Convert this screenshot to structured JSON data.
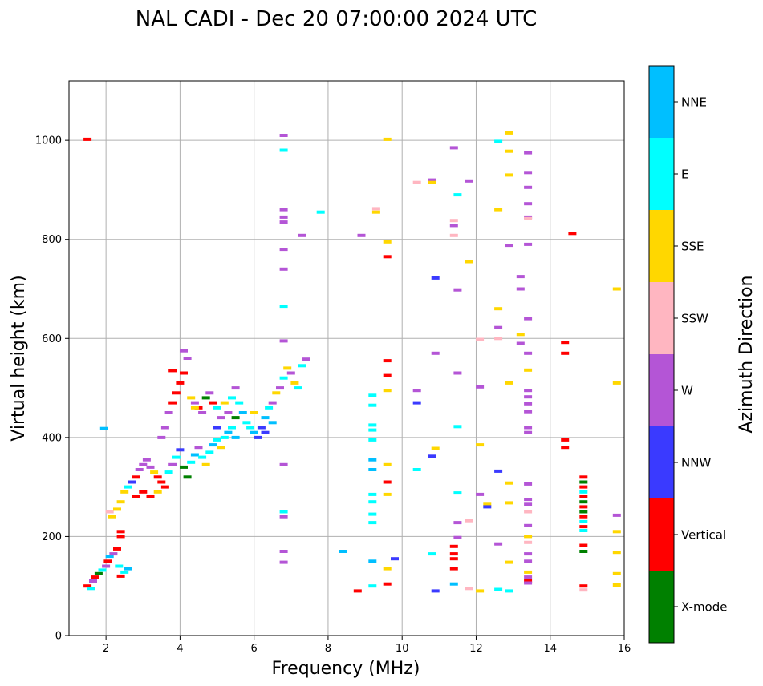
{
  "chart_data": {
    "type": "scatter",
    "title": "NAL CADI - Dec 20 07:00:00 2024 UTC",
    "xlabel": "Frequency (MHz)",
    "ylabel": "Virtual height (km)",
    "xlim": [
      1,
      16
    ],
    "ylim": [
      0,
      1120
    ],
    "xticks": [
      2,
      4,
      6,
      8,
      10,
      12,
      14,
      16
    ],
    "yticks": [
      0,
      200,
      400,
      600,
      800,
      1000
    ],
    "grid": true,
    "colorbar": {
      "label": "Azimuth Direction",
      "categories": [
        {
          "name": "X-mode",
          "color": "#008000"
        },
        {
          "name": "Vertical",
          "color": "#ff0000"
        },
        {
          "name": "NNW",
          "color": "#3a3aff"
        },
        {
          "name": "W",
          "color": "#b455d6"
        },
        {
          "name": "SSW",
          "color": "#ffb6c1"
        },
        {
          "name": "SSE",
          "color": "#ffd700"
        },
        {
          "name": "E",
          "color": "#00ffff"
        },
        {
          "name": "NNE",
          "color": "#00bfff"
        }
      ]
    },
    "points": [
      [
        1.5,
        1002,
        1
      ],
      [
        1.5,
        100,
        1
      ],
      [
        1.6,
        95,
        6
      ],
      [
        1.65,
        110,
        3
      ],
      [
        1.7,
        118,
        1
      ],
      [
        1.8,
        125,
        0
      ],
      [
        1.9,
        132,
        6
      ],
      [
        2.0,
        140,
        3
      ],
      [
        2.05,
        150,
        1
      ],
      [
        2.1,
        160,
        7
      ],
      [
        2.2,
        165,
        3
      ],
      [
        2.3,
        175,
        1
      ],
      [
        2.4,
        200,
        1
      ],
      [
        2.4,
        210,
        1
      ],
      [
        2.35,
        140,
        6
      ],
      [
        2.5,
        128,
        6
      ],
      [
        2.6,
        135,
        7
      ],
      [
        2.4,
        120,
        1
      ],
      [
        1.95,
        418,
        7
      ],
      [
        2.1,
        250,
        4
      ],
      [
        2.15,
        240,
        5
      ],
      [
        2.3,
        255,
        5
      ],
      [
        2.4,
        270,
        5
      ],
      [
        2.5,
        290,
        5
      ],
      [
        2.6,
        300,
        6
      ],
      [
        2.7,
        310,
        2
      ],
      [
        2.8,
        320,
        1
      ],
      [
        2.9,
        335,
        3
      ],
      [
        3.0,
        345,
        3
      ],
      [
        3.1,
        355,
        3
      ],
      [
        3.2,
        340,
        3
      ],
      [
        3.3,
        330,
        5
      ],
      [
        3.4,
        320,
        1
      ],
      [
        3.5,
        310,
        1
      ],
      [
        3.6,
        300,
        1
      ],
      [
        3.0,
        290,
        1
      ],
      [
        3.2,
        280,
        1
      ],
      [
        2.8,
        280,
        1
      ],
      [
        3.4,
        290,
        5
      ],
      [
        3.7,
        330,
        6
      ],
      [
        3.8,
        345,
        3
      ],
      [
        3.9,
        360,
        6
      ],
      [
        4.0,
        375,
        2
      ],
      [
        4.1,
        340,
        0
      ],
      [
        4.2,
        320,
        0
      ],
      [
        4.3,
        350,
        6
      ],
      [
        4.4,
        365,
        7
      ],
      [
        4.5,
        380,
        3
      ],
      [
        4.6,
        360,
        6
      ],
      [
        4.7,
        345,
        5
      ],
      [
        4.8,
        370,
        6
      ],
      [
        4.9,
        385,
        7
      ],
      [
        5.0,
        395,
        6
      ],
      [
        5.1,
        380,
        5
      ],
      [
        5.2,
        400,
        6
      ],
      [
        5.3,
        410,
        7
      ],
      [
        5.4,
        420,
        6
      ],
      [
        5.5,
        400,
        7
      ],
      [
        3.5,
        400,
        3
      ],
      [
        3.6,
        420,
        3
      ],
      [
        3.7,
        450,
        3
      ],
      [
        3.8,
        470,
        1
      ],
      [
        3.9,
        490,
        1
      ],
      [
        4.0,
        510,
        1
      ],
      [
        4.1,
        530,
        1
      ],
      [
        4.2,
        560,
        3
      ],
      [
        4.3,
        480,
        5
      ],
      [
        4.4,
        470,
        3
      ],
      [
        4.5,
        460,
        1
      ],
      [
        4.6,
        450,
        3
      ],
      [
        4.7,
        480,
        0
      ],
      [
        4.8,
        490,
        3
      ],
      [
        4.9,
        470,
        1
      ],
      [
        5.0,
        460,
        6
      ],
      [
        5.1,
        440,
        3
      ],
      [
        5.2,
        470,
        5
      ],
      [
        5.3,
        450,
        3
      ],
      [
        5.4,
        480,
        6
      ],
      [
        5.5,
        500,
        3
      ],
      [
        5.6,
        470,
        6
      ],
      [
        5.7,
        450,
        7
      ],
      [
        5.8,
        430,
        6
      ],
      [
        5.9,
        420,
        6
      ],
      [
        6.0,
        410,
        7
      ],
      [
        6.1,
        400,
        2
      ],
      [
        6.2,
        420,
        2
      ],
      [
        6.3,
        440,
        7
      ],
      [
        6.4,
        460,
        6
      ],
      [
        6.5,
        470,
        3
      ],
      [
        6.6,
        490,
        5
      ],
      [
        6.7,
        500,
        3
      ],
      [
        6.8,
        520,
        6
      ],
      [
        6.9,
        540,
        5
      ],
      [
        7.0,
        530,
        3
      ],
      [
        7.1,
        510,
        5
      ],
      [
        7.2,
        500,
        6
      ],
      [
        7.3,
        545,
        6
      ],
      [
        7.4,
        558,
        3
      ],
      [
        4.1,
        575,
        3
      ],
      [
        3.8,
        535,
        1
      ],
      [
        4.4,
        460,
        5
      ],
      [
        5.0,
        420,
        2
      ],
      [
        5.5,
        440,
        0
      ],
      [
        6.0,
        450,
        5
      ],
      [
        6.5,
        430,
        7
      ],
      [
        6.3,
        410,
        2
      ],
      [
        6.8,
        1010,
        3
      ],
      [
        6.8,
        980,
        6
      ],
      [
        6.8,
        860,
        3
      ],
      [
        6.8,
        845,
        3
      ],
      [
        6.8,
        835,
        3
      ],
      [
        6.8,
        780,
        3
      ],
      [
        6.8,
        740,
        3
      ],
      [
        6.8,
        665,
        6
      ],
      [
        6.8,
        595,
        3
      ],
      [
        6.8,
        345,
        3
      ],
      [
        6.8,
        250,
        6
      ],
      [
        6.8,
        240,
        3
      ],
      [
        6.8,
        170,
        3
      ],
      [
        6.8,
        148,
        3
      ],
      [
        7.3,
        808,
        3
      ],
      [
        7.8,
        855,
        6
      ],
      [
        8.4,
        170,
        7
      ],
      [
        8.8,
        90,
        1
      ],
      [
        8.9,
        808,
        3
      ],
      [
        9.2,
        485,
        6
      ],
      [
        9.2,
        465,
        6
      ],
      [
        9.2,
        425,
        6
      ],
      [
        9.2,
        415,
        6
      ],
      [
        9.2,
        395,
        6
      ],
      [
        9.2,
        355,
        7
      ],
      [
        9.2,
        335,
        7
      ],
      [
        9.2,
        285,
        6
      ],
      [
        9.2,
        270,
        6
      ],
      [
        9.2,
        245,
        6
      ],
      [
        9.2,
        228,
        6
      ],
      [
        9.2,
        150,
        7
      ],
      [
        9.2,
        100,
        6
      ],
      [
        9.3,
        862,
        4
      ],
      [
        9.3,
        855,
        5
      ],
      [
        9.6,
        1002,
        5
      ],
      [
        9.6,
        795,
        5
      ],
      [
        9.6,
        765,
        1
      ],
      [
        9.6,
        555,
        1
      ],
      [
        9.6,
        525,
        1
      ],
      [
        9.6,
        495,
        5
      ],
      [
        9.6,
        345,
        5
      ],
      [
        9.6,
        310,
        1
      ],
      [
        9.6,
        285,
        5
      ],
      [
        9.6,
        135,
        5
      ],
      [
        9.6,
        104,
        1
      ],
      [
        9.8,
        155,
        2
      ],
      [
        10.4,
        915,
        4
      ],
      [
        10.4,
        495,
        3
      ],
      [
        10.4,
        470,
        2
      ],
      [
        10.4,
        335,
        6
      ],
      [
        10.8,
        920,
        3
      ],
      [
        10.8,
        915,
        5
      ],
      [
        10.8,
        362,
        2
      ],
      [
        10.8,
        165,
        6
      ],
      [
        10.9,
        722,
        2
      ],
      [
        10.9,
        570,
        3
      ],
      [
        10.9,
        378,
        5
      ],
      [
        10.9,
        90,
        2
      ],
      [
        11.4,
        985,
        3
      ],
      [
        11.4,
        838,
        4
      ],
      [
        11.4,
        828,
        3
      ],
      [
        11.4,
        808,
        4
      ],
      [
        11.4,
        180,
        1
      ],
      [
        11.4,
        165,
        1
      ],
      [
        11.4,
        155,
        1
      ],
      [
        11.4,
        135,
        1
      ],
      [
        11.4,
        104,
        7
      ],
      [
        11.5,
        890,
        6
      ],
      [
        11.5,
        698,
        3
      ],
      [
        11.5,
        530,
        3
      ],
      [
        11.5,
        422,
        6
      ],
      [
        11.5,
        288,
        6
      ],
      [
        11.5,
        228,
        3
      ],
      [
        11.5,
        198,
        3
      ],
      [
        11.8,
        918,
        3
      ],
      [
        11.8,
        755,
        5
      ],
      [
        11.8,
        232,
        4
      ],
      [
        11.8,
        95,
        4
      ],
      [
        12.1,
        598,
        4
      ],
      [
        12.1,
        502,
        3
      ],
      [
        12.1,
        385,
        5
      ],
      [
        12.1,
        285,
        3
      ],
      [
        12.1,
        90,
        5
      ],
      [
        12.3,
        265,
        5
      ],
      [
        12.3,
        260,
        2
      ],
      [
        12.6,
        998,
        6
      ],
      [
        12.6,
        860,
        5
      ],
      [
        12.6,
        660,
        5
      ],
      [
        12.6,
        622,
        3
      ],
      [
        12.6,
        600,
        4
      ],
      [
        12.6,
        332,
        2
      ],
      [
        12.6,
        185,
        3
      ],
      [
        12.6,
        93,
        6
      ],
      [
        12.9,
        1015,
        5
      ],
      [
        12.9,
        978,
        5
      ],
      [
        12.9,
        930,
        5
      ],
      [
        12.9,
        788,
        3
      ],
      [
        12.9,
        510,
        5
      ],
      [
        12.9,
        308,
        5
      ],
      [
        12.9,
        268,
        5
      ],
      [
        12.9,
        148,
        5
      ],
      [
        12.9,
        90,
        6
      ],
      [
        13.2,
        725,
        3
      ],
      [
        13.2,
        700,
        3
      ],
      [
        13.2,
        608,
        5
      ],
      [
        13.2,
        590,
        3
      ],
      [
        13.4,
        975,
        3
      ],
      [
        13.4,
        935,
        3
      ],
      [
        13.4,
        905,
        3
      ],
      [
        13.4,
        872,
        3
      ],
      [
        13.4,
        845,
        3
      ],
      [
        13.4,
        842,
        4
      ],
      [
        13.4,
        790,
        3
      ],
      [
        13.4,
        640,
        3
      ],
      [
        13.4,
        570,
        3
      ],
      [
        13.4,
        536,
        5
      ],
      [
        13.4,
        495,
        3
      ],
      [
        13.4,
        482,
        3
      ],
      [
        13.4,
        468,
        3
      ],
      [
        13.4,
        452,
        3
      ],
      [
        13.4,
        420,
        3
      ],
      [
        13.4,
        410,
        3
      ],
      [
        13.4,
        306,
        3
      ],
      [
        13.4,
        275,
        3
      ],
      [
        13.4,
        265,
        3
      ],
      [
        13.4,
        250,
        4
      ],
      [
        13.4,
        222,
        3
      ],
      [
        13.4,
        200,
        5
      ],
      [
        13.4,
        188,
        4
      ],
      [
        13.4,
        165,
        3
      ],
      [
        13.4,
        150,
        3
      ],
      [
        13.4,
        128,
        5
      ],
      [
        13.4,
        118,
        3
      ],
      [
        13.4,
        110,
        1
      ],
      [
        13.4,
        106,
        3
      ],
      [
        14.4,
        592,
        1
      ],
      [
        14.4,
        570,
        1
      ],
      [
        14.4,
        395,
        1
      ],
      [
        14.4,
        380,
        1
      ],
      [
        14.6,
        812,
        1
      ],
      [
        14.9,
        320,
        1
      ],
      [
        14.9,
        310,
        0
      ],
      [
        14.9,
        300,
        1
      ],
      [
        14.9,
        290,
        6
      ],
      [
        14.9,
        280,
        1
      ],
      [
        14.9,
        270,
        0
      ],
      [
        14.9,
        260,
        1
      ],
      [
        14.9,
        250,
        0
      ],
      [
        14.9,
        240,
        1
      ],
      [
        14.9,
        230,
        6
      ],
      [
        14.9,
        220,
        1
      ],
      [
        14.9,
        212,
        6
      ],
      [
        14.9,
        182,
        1
      ],
      [
        14.9,
        170,
        0
      ],
      [
        14.9,
        100,
        1
      ],
      [
        14.9,
        92,
        4
      ],
      [
        15.8,
        700,
        5
      ],
      [
        15.8,
        510,
        5
      ],
      [
        15.8,
        243,
        3
      ],
      [
        15.8,
        210,
        5
      ],
      [
        15.8,
        168,
        5
      ],
      [
        15.8,
        125,
        5
      ],
      [
        15.8,
        102,
        5
      ]
    ]
  }
}
